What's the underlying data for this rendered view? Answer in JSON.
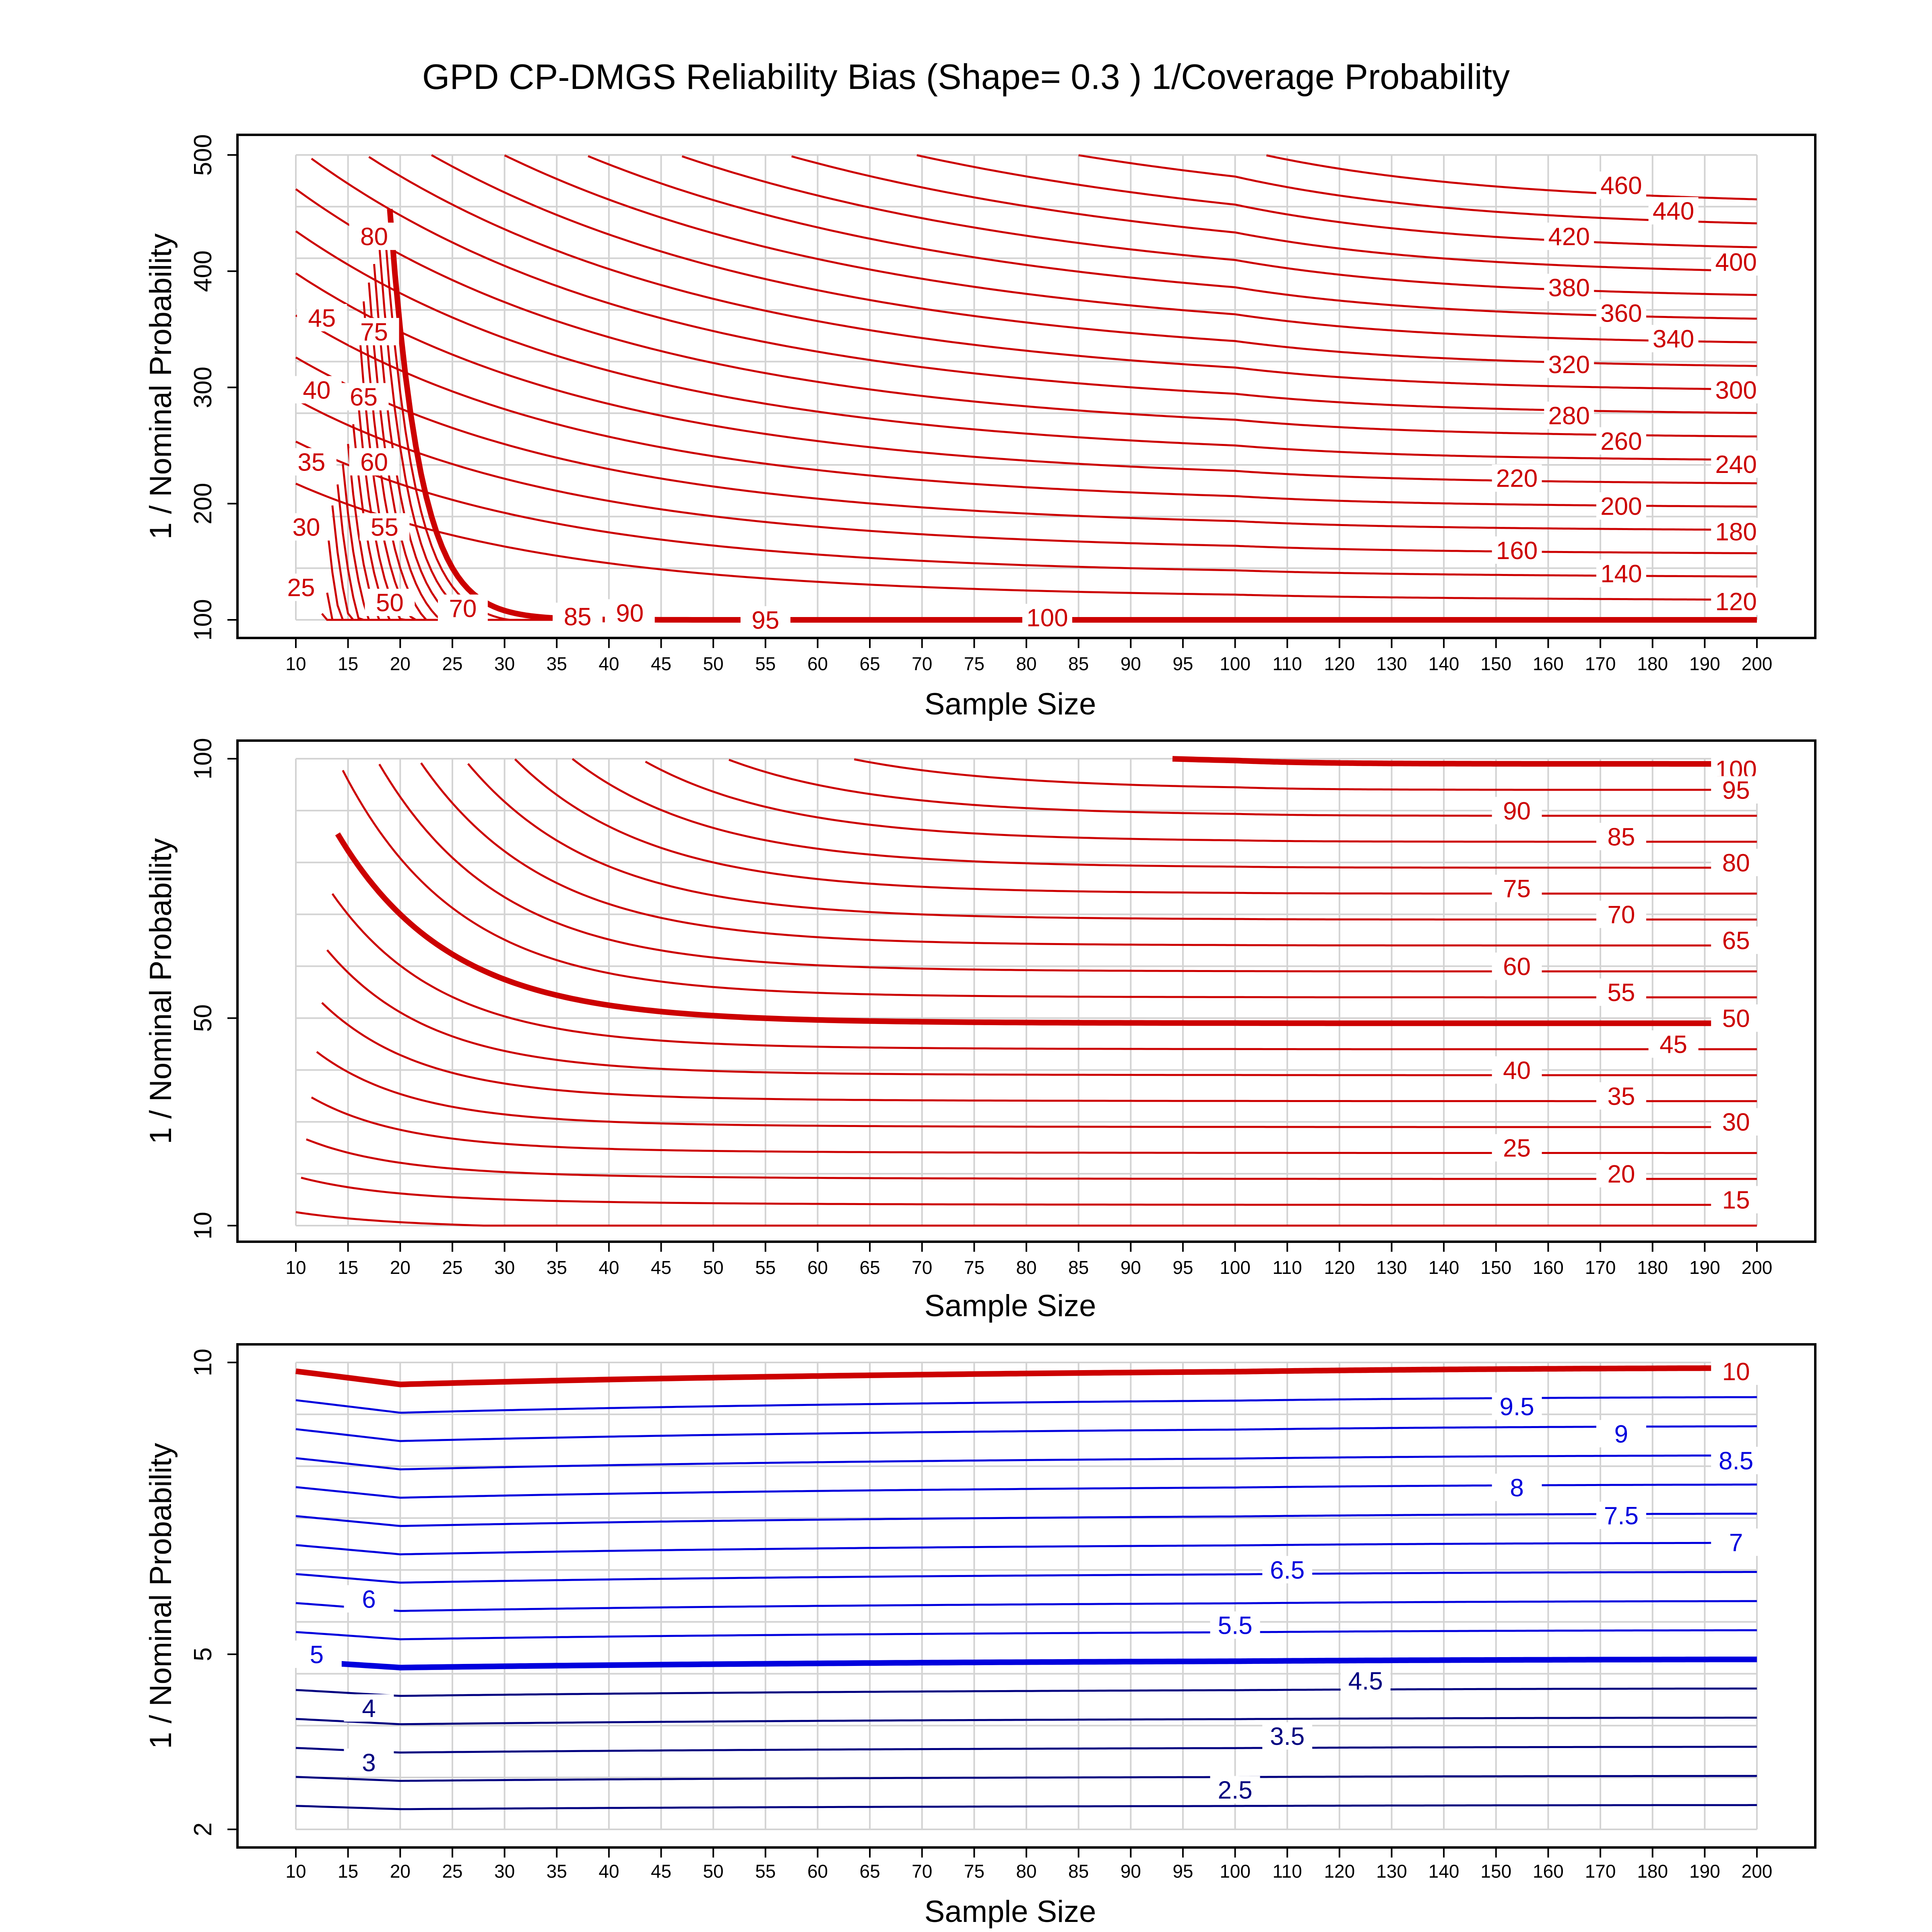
{
  "title": "GPD CP-DMGS Reliability Bias (Shape= 0.3 ) 1/Coverage Probability",
  "colors": {
    "red": "#cc0000",
    "blue": "#0000dd",
    "navy": "#000080",
    "grid": "#d3d3d3"
  },
  "chart_data": [
    {
      "type": "line",
      "panel": "top",
      "x": [
        10,
        15,
        20,
        25,
        30,
        35,
        40,
        45,
        50,
        55,
        60,
        65,
        70,
        75,
        80,
        85,
        90,
        95,
        100,
        110,
        120,
        130,
        140,
        150,
        160,
        170,
        180,
        190,
        200
      ],
      "xlabel": "Sample Size",
      "ylabel": "1 / Nominal Probability",
      "ylim": [
        100,
        500
      ],
      "yticks": [
        100,
        200,
        300,
        400,
        500
      ],
      "ytick_labels": [
        "100",
        "200",
        "300",
        "400",
        "500"
      ],
      "grid": true,
      "contour_levels_shown": [
        25,
        30,
        35,
        40,
        45,
        50,
        55,
        60,
        65,
        70,
        75,
        80,
        85,
        90,
        95,
        100,
        120,
        140,
        160,
        180,
        200,
        220,
        240,
        260,
        280,
        300,
        320,
        340,
        360,
        380,
        400,
        420,
        440,
        460
      ],
      "emphasized_level": 100,
      "line_color": "red",
      "labels": [
        {
          "text": "460",
          "x": 174,
          "y": 474
        },
        {
          "text": "440",
          "x": 184,
          "y": 452
        },
        {
          "text": "420",
          "x": 164,
          "y": 430
        },
        {
          "text": "400",
          "x": 196,
          "y": 408
        },
        {
          "text": "380",
          "x": 164,
          "y": 386
        },
        {
          "text": "360",
          "x": 174,
          "y": 364
        },
        {
          "text": "340",
          "x": 184,
          "y": 342
        },
        {
          "text": "320",
          "x": 164,
          "y": 320
        },
        {
          "text": "300",
          "x": 196,
          "y": 298
        },
        {
          "text": "280",
          "x": 164,
          "y": 276
        },
        {
          "text": "260",
          "x": 174,
          "y": 254
        },
        {
          "text": "240",
          "x": 196,
          "y": 234
        },
        {
          "text": "220",
          "x": 154,
          "y": 222
        },
        {
          "text": "200",
          "x": 174,
          "y": 198
        },
        {
          "text": "180",
          "x": 196,
          "y": 176
        },
        {
          "text": "160",
          "x": 154,
          "y": 160
        },
        {
          "text": "140",
          "x": 174,
          "y": 140
        },
        {
          "text": "120",
          "x": 196,
          "y": 116
        },
        {
          "text": "100",
          "x": 82,
          "y": 102
        },
        {
          "text": "95",
          "x": 55,
          "y": 100
        },
        {
          "text": "90",
          "x": 42,
          "y": 106
        },
        {
          "text": "85",
          "x": 37,
          "y": 103
        },
        {
          "text": "70",
          "x": 26,
          "y": 110
        },
        {
          "text": "50",
          "x": 19,
          "y": 115
        },
        {
          "text": "55",
          "x": 18.5,
          "y": 180
        },
        {
          "text": "60",
          "x": 17.5,
          "y": 236
        },
        {
          "text": "65",
          "x": 16.5,
          "y": 292
        },
        {
          "text": "75",
          "x": 17.5,
          "y": 348
        },
        {
          "text": "80",
          "x": 17.5,
          "y": 430
        },
        {
          "text": "45",
          "x": 12.5,
          "y": 360
        },
        {
          "text": "40",
          "x": 12,
          "y": 298
        },
        {
          "text": "35",
          "x": 11.5,
          "y": 236
        },
        {
          "text": "30",
          "x": 11,
          "y": 180
        },
        {
          "text": "25",
          "x": 10.5,
          "y": 128
        }
      ]
    },
    {
      "type": "line",
      "panel": "middle",
      "x": [
        10,
        15,
        20,
        25,
        30,
        35,
        40,
        45,
        50,
        55,
        60,
        65,
        70,
        75,
        80,
        85,
        90,
        95,
        100,
        110,
        120,
        130,
        140,
        150,
        160,
        170,
        180,
        190,
        200
      ],
      "xlabel": "Sample Size",
      "ylabel": "1 / Nominal Probability",
      "ylim": [
        10,
        100
      ],
      "yticks": [
        10,
        50,
        100
      ],
      "ytick_labels": [
        "10",
        "50",
        "100"
      ],
      "grid": true,
      "contour_levels_shown": [
        10,
        15,
        20,
        25,
        30,
        35,
        40,
        45,
        50,
        55,
        60,
        65,
        70,
        75,
        80,
        85,
        90,
        95,
        100
      ],
      "emphasized_levels": [
        50,
        100
      ],
      "line_color": "red",
      "labels": [
        {
          "text": "100",
          "x": 196,
          "y": 98
        },
        {
          "text": "95",
          "x": 196,
          "y": 94
        },
        {
          "text": "90",
          "x": 154,
          "y": 90
        },
        {
          "text": "85",
          "x": 174,
          "y": 85
        },
        {
          "text": "80",
          "x": 196,
          "y": 80
        },
        {
          "text": "75",
          "x": 154,
          "y": 75
        },
        {
          "text": "70",
          "x": 174,
          "y": 70
        },
        {
          "text": "65",
          "x": 196,
          "y": 65
        },
        {
          "text": "60",
          "x": 154,
          "y": 60
        },
        {
          "text": "55",
          "x": 174,
          "y": 55
        },
        {
          "text": "50",
          "x": 196,
          "y": 50
        },
        {
          "text": "45",
          "x": 184,
          "y": 45
        },
        {
          "text": "40",
          "x": 154,
          "y": 40
        },
        {
          "text": "35",
          "x": 174,
          "y": 35
        },
        {
          "text": "30",
          "x": 196,
          "y": 30
        },
        {
          "text": "25",
          "x": 154,
          "y": 25
        },
        {
          "text": "20",
          "x": 174,
          "y": 20
        },
        {
          "text": "15",
          "x": 196,
          "y": 15
        }
      ]
    },
    {
      "type": "line",
      "panel": "bottom",
      "x": [
        10,
        15,
        20,
        25,
        30,
        35,
        40,
        45,
        50,
        55,
        60,
        65,
        70,
        75,
        80,
        85,
        90,
        95,
        100,
        110,
        120,
        130,
        140,
        150,
        160,
        170,
        180,
        190,
        200
      ],
      "xlabel": "Sample Size",
      "ylabel": "1 / Nominal Probability",
      "ylim": [
        2,
        10
      ],
      "yticks": [
        2,
        5,
        10
      ],
      "ytick_labels": [
        "2",
        "5",
        "10"
      ],
      "grid": true,
      "contour_levels_shown": [
        2.5,
        3,
        3.5,
        4,
        4.5,
        5,
        5.5,
        6,
        6.5,
        7,
        7.5,
        8,
        8.5,
        9,
        9.5,
        10
      ],
      "emphasized_levels": [
        5,
        10
      ],
      "line_colors": {
        "10": "red",
        "5.5-9.5": "blue",
        "2.5-4.5": "navy"
      },
      "labels": [
        {
          "text": "10",
          "x": 196,
          "y": 9.85
        },
        {
          "text": "9.5",
          "x": 154,
          "y": 9.25
        },
        {
          "text": "9",
          "x": 174,
          "y": 8.78
        },
        {
          "text": "8.5",
          "x": 196,
          "y": 8.32
        },
        {
          "text": "8",
          "x": 154,
          "y": 7.86
        },
        {
          "text": "7.5",
          "x": 174,
          "y": 7.38
        },
        {
          "text": "7",
          "x": 196,
          "y": 6.92
        },
        {
          "text": "6.5",
          "x": 110,
          "y": 6.45
        },
        {
          "text": "6",
          "x": 17,
          "y": 5.95
        },
        {
          "text": "5.5",
          "x": 100,
          "y": 5.5
        },
        {
          "text": "5",
          "x": 12,
          "y": 5.0
        },
        {
          "text": "4.5",
          "x": 125,
          "y": 4.55
        },
        {
          "text": "4",
          "x": 17,
          "y": 4.08
        },
        {
          "text": "3.5",
          "x": 110,
          "y": 3.6
        },
        {
          "text": "3",
          "x": 17,
          "y": 3.15
        },
        {
          "text": "2.5",
          "x": 100,
          "y": 2.68
        }
      ]
    }
  ]
}
